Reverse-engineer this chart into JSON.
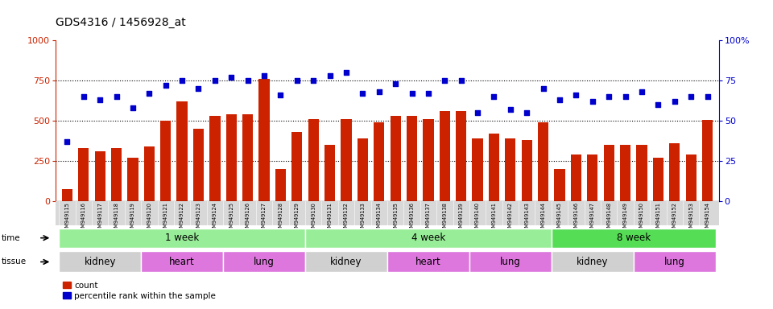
{
  "title": "GDS4316 / 1456928_at",
  "samples": [
    "GSM949115",
    "GSM949116",
    "GSM949117",
    "GSM949118",
    "GSM949119",
    "GSM949120",
    "GSM949121",
    "GSM949122",
    "GSM949123",
    "GSM949124",
    "GSM949125",
    "GSM949126",
    "GSM949127",
    "GSM949128",
    "GSM949129",
    "GSM949130",
    "GSM949131",
    "GSM949132",
    "GSM949133",
    "GSM949134",
    "GSM949135",
    "GSM949136",
    "GSM949137",
    "GSM949138",
    "GSM949139",
    "GSM949140",
    "GSM949141",
    "GSM949142",
    "GSM949143",
    "GSM949144",
    "GSM949145",
    "GSM949146",
    "GSM949147",
    "GSM949148",
    "GSM949149",
    "GSM949150",
    "GSM949151",
    "GSM949152",
    "GSM949153",
    "GSM949154"
  ],
  "counts": [
    75,
    330,
    310,
    330,
    270,
    340,
    500,
    620,
    450,
    530,
    540,
    540,
    760,
    200,
    430,
    510,
    350,
    510,
    390,
    490,
    530,
    530,
    510,
    560,
    560,
    390,
    420,
    390,
    380,
    490,
    200,
    290,
    290,
    350,
    350,
    350,
    270,
    360,
    290,
    505
  ],
  "percentiles": [
    37,
    65,
    63,
    65,
    58,
    67,
    72,
    75,
    70,
    75,
    77,
    75,
    78,
    66,
    75,
    75,
    78,
    80,
    67,
    68,
    73,
    67,
    67,
    75,
    75,
    55,
    65,
    57,
    55,
    70,
    63,
    66,
    62,
    65,
    65,
    68,
    60,
    62,
    65,
    65
  ],
  "bar_color": "#cc2200",
  "dot_color": "#0000cc",
  "ylim_left": [
    0,
    1000
  ],
  "ylim_right": [
    0,
    100
  ],
  "yticks_left": [
    0,
    250,
    500,
    750,
    1000
  ],
  "yticks_right": [
    0,
    25,
    50,
    75,
    100
  ],
  "hlines": [
    250,
    500,
    750
  ],
  "time_groups": [
    {
      "label": "1 week",
      "start": 0,
      "end": 15,
      "color": "#98ee98"
    },
    {
      "label": "4 week",
      "start": 15,
      "end": 30,
      "color": "#98ee98"
    },
    {
      "label": "8 week",
      "start": 30,
      "end": 40,
      "color": "#55dd55"
    }
  ],
  "tissue_groups": [
    {
      "label": "kidney",
      "start": 0,
      "end": 5,
      "color": "#d0d0d0"
    },
    {
      "label": "heart",
      "start": 5,
      "end": 10,
      "color": "#dd77dd"
    },
    {
      "label": "lung",
      "start": 10,
      "end": 15,
      "color": "#dd77dd"
    },
    {
      "label": "kidney",
      "start": 15,
      "end": 20,
      "color": "#d0d0d0"
    },
    {
      "label": "heart",
      "start": 20,
      "end": 25,
      "color": "#dd77dd"
    },
    {
      "label": "lung",
      "start": 25,
      "end": 30,
      "color": "#dd77dd"
    },
    {
      "label": "kidney",
      "start": 30,
      "end": 35,
      "color": "#d0d0d0"
    },
    {
      "label": "lung",
      "start": 35,
      "end": 40,
      "color": "#dd77dd"
    }
  ],
  "legend_count_label": "count",
  "legend_pct_label": "percentile rank within the sample",
  "xtick_bg_color": "#d8d8d8",
  "fig_bg_color": "#ffffff"
}
